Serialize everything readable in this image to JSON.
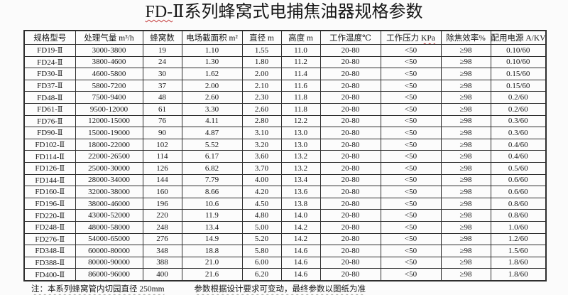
{
  "page": {
    "title": {
      "part1": "FD-",
      "part2": "Ⅱ系列蜂窝式电捕焦油器规格参数"
    }
  },
  "table": {
    "headers": [
      {
        "text": "规格型号"
      },
      {
        "text": "处理气量 m³/h"
      },
      {
        "text": "蜂窝数"
      },
      {
        "text": "电场截面积 m²"
      },
      {
        "text": "直径 m"
      },
      {
        "text": "高度 m"
      },
      {
        "text": "工作温度℃"
      },
      {
        "text": "工作压力 ",
        "wavy": "KPa"
      },
      {
        "text": "除焦效率%"
      },
      {
        "text": "配用电源 A/KV"
      }
    ],
    "rows": [
      [
        "FD19-Ⅱ",
        "3000-3800",
        "19",
        "1.10",
        "1.55",
        "11.0",
        "20-80",
        "<50",
        "≥98",
        "0.10/60"
      ],
      [
        "FD24-Ⅱ",
        "3800-4600",
        "24",
        "1.30",
        "1.80",
        "11.2",
        "20-80",
        "<50",
        "≥98",
        "0.10/60"
      ],
      [
        "FD30-Ⅱ",
        "4600-5800",
        "30",
        "1.62",
        "2.00",
        "11.4",
        "20-80",
        "<50",
        "≥98",
        "0.15/60"
      ],
      [
        "FD37-Ⅱ",
        "5800-7200",
        "37",
        "2.00",
        "2.10",
        "11.6",
        "20-80",
        "<50",
        "≥98",
        "0.15/60"
      ],
      [
        "FD48-Ⅱ",
        "7500-9400",
        "48",
        "2.60",
        "2.30",
        "11.8",
        "20-80",
        "<50",
        "≥98",
        "0.2/60"
      ],
      [
        "FD61-Ⅱ",
        "9500-12000",
        "61",
        "3.30",
        "2.60",
        "11.8",
        "20-80",
        "<50",
        "≥98",
        "0.2/60"
      ],
      [
        "FD76-Ⅱ",
        "12000-15000",
        "76",
        "4.11",
        "2.80",
        "12.2",
        "20-80",
        "<50",
        "≥98",
        "0.3/60"
      ],
      [
        "FD90-Ⅱ",
        "15000-19000",
        "90",
        "4.87",
        "3.10",
        "13.0",
        "20-80",
        "<50",
        "≥98",
        "0.3/60"
      ],
      [
        "FD102-Ⅱ",
        "18000-22000",
        "102",
        "5.52",
        "3.20",
        "13.0",
        "20-80",
        "<50",
        "≥98",
        "0.4/60"
      ],
      [
        "FD114-Ⅱ",
        "22000-26500",
        "114",
        "6.17",
        "3.60",
        "13.2",
        "20-80",
        "<50",
        "≥98",
        "0.4/60"
      ],
      [
        "FD126-Ⅱ",
        "25000-30000",
        "126",
        "6.82",
        "3.70",
        "13.2",
        "20-80",
        "<50",
        "≥98",
        "0.5/60"
      ],
      [
        "FD144-Ⅱ",
        "28000-34000",
        "144",
        "7.79",
        "4.00",
        "13.4",
        "20-80",
        "<50",
        "≥98",
        "0.6/60"
      ],
      [
        "FD160-Ⅱ",
        "32000-38000",
        "160",
        "8.66",
        "4.20",
        "13.6",
        "20-80",
        "<50",
        "≥98",
        "0.6/60"
      ],
      [
        "FD196-Ⅱ",
        "38000-46000",
        "196",
        "10.6",
        "4.50",
        "13.8",
        "20-80",
        "<50",
        "≥98",
        "0.8/60"
      ],
      [
        "FD220-Ⅱ",
        "43000-52000",
        "220",
        "11.9",
        "4.80",
        "14.0",
        "20-80",
        "<50",
        "≥98",
        "0.8/60"
      ],
      [
        "FD248-Ⅱ",
        "48000-58000",
        "248",
        "13.4",
        "5.00",
        "14.2",
        "20-80",
        "<50",
        "≥98",
        "1.0/60"
      ],
      [
        "FD276-Ⅱ",
        "54000-65000",
        "276",
        "14.9",
        "5.20",
        "14.2",
        "20-80",
        "<50",
        "≥98",
        "1.2/60"
      ],
      [
        "FD348-Ⅱ",
        "60000-80000",
        "348",
        "18.8",
        "5.80",
        "14.6",
        "20-80",
        "<50",
        "≥98",
        "1.5/60"
      ],
      [
        "FD388-Ⅱ",
        "80000-90000",
        "388",
        "21.0",
        "6.00",
        "14.6",
        "20-80",
        "<50",
        "≥98",
        "1.8/60"
      ],
      [
        "FD400-Ⅱ",
        "86000-96000",
        "400",
        "21.6",
        "6.20",
        "14.6",
        "20-80",
        "<50",
        "≥98",
        "1.8/60"
      ]
    ]
  },
  "note": {
    "part1": "注：本系列蜂窝管内切园直径 250mm",
    "part2": "参数根据设计要求可变动，最终参数以图纸为准"
  },
  "colors": {
    "spell_check_underline": "#c43b3b",
    "grammar_check_underline": "#a9aba4",
    "table_border": "#2e2e2e",
    "background": "#fbfbfb",
    "text": "#161616"
  }
}
